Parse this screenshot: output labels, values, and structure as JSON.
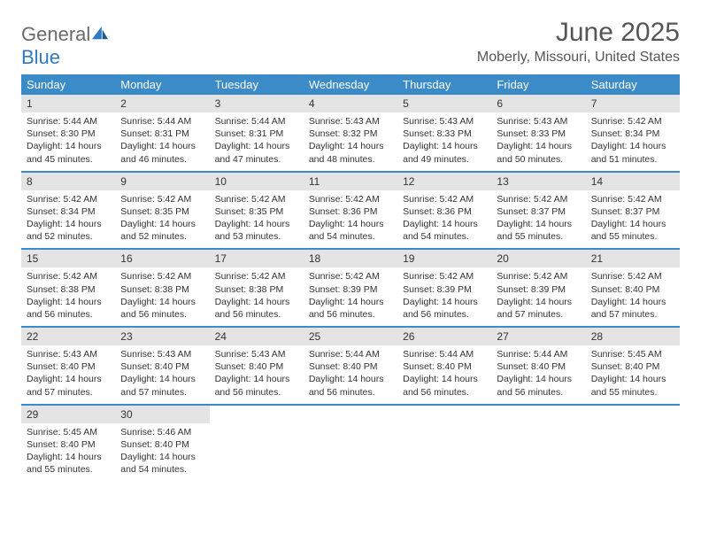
{
  "logo": {
    "general": "General",
    "blue": "Blue"
  },
  "title": {
    "month_year": "June 2025",
    "location": "Moberly, Missouri, United States"
  },
  "colors": {
    "header_bg": "#3b8bc9",
    "header_text": "#ffffff",
    "daynum_bg": "#e4e4e4",
    "text": "#333333",
    "logo_gray": "#6b6b6b",
    "logo_blue": "#2f7ac0"
  },
  "day_headers": [
    "Sunday",
    "Monday",
    "Tuesday",
    "Wednesday",
    "Thursday",
    "Friday",
    "Saturday"
  ],
  "weeks": [
    [
      {
        "n": "1",
        "sunrise": "Sunrise: 5:44 AM",
        "sunset": "Sunset: 8:30 PM",
        "day1": "Daylight: 14 hours",
        "day2": "and 45 minutes."
      },
      {
        "n": "2",
        "sunrise": "Sunrise: 5:44 AM",
        "sunset": "Sunset: 8:31 PM",
        "day1": "Daylight: 14 hours",
        "day2": "and 46 minutes."
      },
      {
        "n": "3",
        "sunrise": "Sunrise: 5:44 AM",
        "sunset": "Sunset: 8:31 PM",
        "day1": "Daylight: 14 hours",
        "day2": "and 47 minutes."
      },
      {
        "n": "4",
        "sunrise": "Sunrise: 5:43 AM",
        "sunset": "Sunset: 8:32 PM",
        "day1": "Daylight: 14 hours",
        "day2": "and 48 minutes."
      },
      {
        "n": "5",
        "sunrise": "Sunrise: 5:43 AM",
        "sunset": "Sunset: 8:33 PM",
        "day1": "Daylight: 14 hours",
        "day2": "and 49 minutes."
      },
      {
        "n": "6",
        "sunrise": "Sunrise: 5:43 AM",
        "sunset": "Sunset: 8:33 PM",
        "day1": "Daylight: 14 hours",
        "day2": "and 50 minutes."
      },
      {
        "n": "7",
        "sunrise": "Sunrise: 5:42 AM",
        "sunset": "Sunset: 8:34 PM",
        "day1": "Daylight: 14 hours",
        "day2": "and 51 minutes."
      }
    ],
    [
      {
        "n": "8",
        "sunrise": "Sunrise: 5:42 AM",
        "sunset": "Sunset: 8:34 PM",
        "day1": "Daylight: 14 hours",
        "day2": "and 52 minutes."
      },
      {
        "n": "9",
        "sunrise": "Sunrise: 5:42 AM",
        "sunset": "Sunset: 8:35 PM",
        "day1": "Daylight: 14 hours",
        "day2": "and 52 minutes."
      },
      {
        "n": "10",
        "sunrise": "Sunrise: 5:42 AM",
        "sunset": "Sunset: 8:35 PM",
        "day1": "Daylight: 14 hours",
        "day2": "and 53 minutes."
      },
      {
        "n": "11",
        "sunrise": "Sunrise: 5:42 AM",
        "sunset": "Sunset: 8:36 PM",
        "day1": "Daylight: 14 hours",
        "day2": "and 54 minutes."
      },
      {
        "n": "12",
        "sunrise": "Sunrise: 5:42 AM",
        "sunset": "Sunset: 8:36 PM",
        "day1": "Daylight: 14 hours",
        "day2": "and 54 minutes."
      },
      {
        "n": "13",
        "sunrise": "Sunrise: 5:42 AM",
        "sunset": "Sunset: 8:37 PM",
        "day1": "Daylight: 14 hours",
        "day2": "and 55 minutes."
      },
      {
        "n": "14",
        "sunrise": "Sunrise: 5:42 AM",
        "sunset": "Sunset: 8:37 PM",
        "day1": "Daylight: 14 hours",
        "day2": "and 55 minutes."
      }
    ],
    [
      {
        "n": "15",
        "sunrise": "Sunrise: 5:42 AM",
        "sunset": "Sunset: 8:38 PM",
        "day1": "Daylight: 14 hours",
        "day2": "and 56 minutes."
      },
      {
        "n": "16",
        "sunrise": "Sunrise: 5:42 AM",
        "sunset": "Sunset: 8:38 PM",
        "day1": "Daylight: 14 hours",
        "day2": "and 56 minutes."
      },
      {
        "n": "17",
        "sunrise": "Sunrise: 5:42 AM",
        "sunset": "Sunset: 8:38 PM",
        "day1": "Daylight: 14 hours",
        "day2": "and 56 minutes."
      },
      {
        "n": "18",
        "sunrise": "Sunrise: 5:42 AM",
        "sunset": "Sunset: 8:39 PM",
        "day1": "Daylight: 14 hours",
        "day2": "and 56 minutes."
      },
      {
        "n": "19",
        "sunrise": "Sunrise: 5:42 AM",
        "sunset": "Sunset: 8:39 PM",
        "day1": "Daylight: 14 hours",
        "day2": "and 56 minutes."
      },
      {
        "n": "20",
        "sunrise": "Sunrise: 5:42 AM",
        "sunset": "Sunset: 8:39 PM",
        "day1": "Daylight: 14 hours",
        "day2": "and 57 minutes."
      },
      {
        "n": "21",
        "sunrise": "Sunrise: 5:42 AM",
        "sunset": "Sunset: 8:40 PM",
        "day1": "Daylight: 14 hours",
        "day2": "and 57 minutes."
      }
    ],
    [
      {
        "n": "22",
        "sunrise": "Sunrise: 5:43 AM",
        "sunset": "Sunset: 8:40 PM",
        "day1": "Daylight: 14 hours",
        "day2": "and 57 minutes."
      },
      {
        "n": "23",
        "sunrise": "Sunrise: 5:43 AM",
        "sunset": "Sunset: 8:40 PM",
        "day1": "Daylight: 14 hours",
        "day2": "and 57 minutes."
      },
      {
        "n": "24",
        "sunrise": "Sunrise: 5:43 AM",
        "sunset": "Sunset: 8:40 PM",
        "day1": "Daylight: 14 hours",
        "day2": "and 56 minutes."
      },
      {
        "n": "25",
        "sunrise": "Sunrise: 5:44 AM",
        "sunset": "Sunset: 8:40 PM",
        "day1": "Daylight: 14 hours",
        "day2": "and 56 minutes."
      },
      {
        "n": "26",
        "sunrise": "Sunrise: 5:44 AM",
        "sunset": "Sunset: 8:40 PM",
        "day1": "Daylight: 14 hours",
        "day2": "and 56 minutes."
      },
      {
        "n": "27",
        "sunrise": "Sunrise: 5:44 AM",
        "sunset": "Sunset: 8:40 PM",
        "day1": "Daylight: 14 hours",
        "day2": "and 56 minutes."
      },
      {
        "n": "28",
        "sunrise": "Sunrise: 5:45 AM",
        "sunset": "Sunset: 8:40 PM",
        "day1": "Daylight: 14 hours",
        "day2": "and 55 minutes."
      }
    ],
    [
      {
        "n": "29",
        "sunrise": "Sunrise: 5:45 AM",
        "sunset": "Sunset: 8:40 PM",
        "day1": "Daylight: 14 hours",
        "day2": "and 55 minutes."
      },
      {
        "n": "30",
        "sunrise": "Sunrise: 5:46 AM",
        "sunset": "Sunset: 8:40 PM",
        "day1": "Daylight: 14 hours",
        "day2": "and 54 minutes."
      },
      null,
      null,
      null,
      null,
      null
    ]
  ]
}
